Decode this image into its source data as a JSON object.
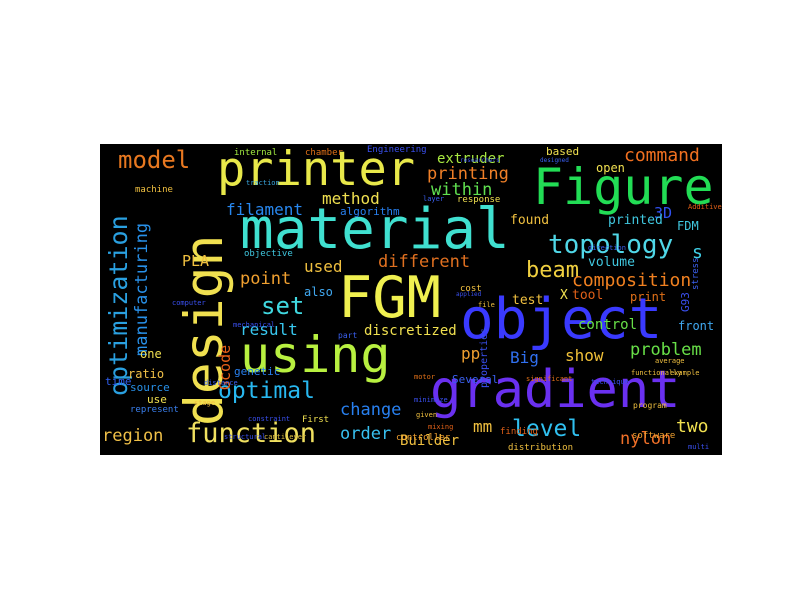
{
  "words": [
    {
      "text": "material",
      "color": "#40e0d0"
    },
    {
      "text": "Figure",
      "color": "#22dd55"
    },
    {
      "text": "printer",
      "color": "#e8e84a"
    },
    {
      "text": "design",
      "color": "#f0e050"
    },
    {
      "text": "FGM",
      "color": "#f0f050"
    },
    {
      "text": "object",
      "color": "#3a3aff"
    },
    {
      "text": "using",
      "color": "#b8f040"
    },
    {
      "text": "gradient",
      "color": "#6a30f0"
    },
    {
      "text": "optimization",
      "color": "#2aa0e0"
    },
    {
      "text": "topology",
      "color": "#50d8e8"
    },
    {
      "text": "model",
      "color": "#e87820"
    },
    {
      "text": "function",
      "color": "#f0e060"
    },
    {
      "text": "optimal",
      "color": "#28b8f0"
    },
    {
      "text": "beam",
      "color": "#f0d040"
    },
    {
      "text": "set",
      "color": "#40d8e0"
    },
    {
      "text": "level",
      "color": "#30c0f0"
    },
    {
      "text": "composition",
      "color": "#f08020"
    },
    {
      "text": "command",
      "color": "#f07020"
    },
    {
      "text": "printing",
      "color": "#f08028"
    },
    {
      "text": "within",
      "color": "#60e050"
    },
    {
      "text": "method",
      "color": "#f0e050"
    },
    {
      "text": "filament",
      "color": "#2888f0"
    },
    {
      "text": "point",
      "color": "#f0a030"
    },
    {
      "text": "different",
      "color": "#e07020"
    },
    {
      "text": "used",
      "color": "#f0c040"
    },
    {
      "text": "result",
      "color": "#38c8f0"
    },
    {
      "text": "change",
      "color": "#2880f0"
    },
    {
      "text": "order",
      "color": "#38c0f0"
    },
    {
      "text": "region",
      "color": "#f0c048"
    },
    {
      "text": "problem",
      "color": "#68e048"
    },
    {
      "text": "show",
      "color": "#f0c038"
    },
    {
      "text": "manufacturing",
      "color": "#2890e8"
    },
    {
      "text": "extruder",
      "color": "#a8e840"
    },
    {
      "text": "discretized",
      "color": "#f0e050"
    },
    {
      "text": "Big",
      "color": "#3070f0"
    },
    {
      "text": "nylon",
      "color": "#f07028"
    },
    {
      "text": "two",
      "color": "#f0e050"
    },
    {
      "text": "mm",
      "color": "#f0c040"
    },
    {
      "text": "pp",
      "color": "#f0a030"
    },
    {
      "text": "Gcode",
      "color": "#e86018"
    },
    {
      "text": "PLA",
      "color": "#f0c040"
    },
    {
      "text": "3D",
      "color": "#3050f0"
    },
    {
      "text": "FDM",
      "color": "#40c8e0"
    },
    {
      "text": "s",
      "color": "#40d0e8"
    },
    {
      "text": "printed",
      "color": "#40c8e0"
    },
    {
      "text": "found",
      "color": "#f0c040"
    },
    {
      "text": "test",
      "color": "#f0c040"
    },
    {
      "text": "tool",
      "color": "#e06018"
    },
    {
      "text": "X",
      "color": "#f0e050"
    },
    {
      "text": "print",
      "color": "#e07018"
    },
    {
      "text": "control",
      "color": "#68e048"
    },
    {
      "text": "volume",
      "color": "#40c8e0"
    },
    {
      "text": "front",
      "color": "#40a8f0"
    },
    {
      "text": "one",
      "color": "#f0e050"
    },
    {
      "text": "ratio",
      "color": "#f0c048"
    },
    {
      "text": "source",
      "color": "#2890e8"
    },
    {
      "text": "time",
      "color": "#3060f0"
    },
    {
      "text": "use",
      "color": "#f0e050"
    },
    {
      "text": "also",
      "color": "#40a8f0"
    },
    {
      "text": "genetic",
      "color": "#2880f0"
    },
    {
      "text": "Builder",
      "color": "#f0c040"
    },
    {
      "text": "open",
      "color": "#f0e050"
    },
    {
      "text": "based",
      "color": "#f0e050"
    },
    {
      "text": "algorithm",
      "color": "#2880f0"
    },
    {
      "text": "internal",
      "color": "#a0e840"
    },
    {
      "text": "chamber",
      "color": "#e07018"
    },
    {
      "text": "Engineering",
      "color": "#3a50f0"
    },
    {
      "text": "represent",
      "color": "#3a80f0"
    },
    {
      "text": "objective",
      "color": "#40c8e0"
    },
    {
      "text": "machine",
      "color": "#f0c040"
    },
    {
      "text": "properties",
      "color": "#3a50f0"
    },
    {
      "text": "Several",
      "color": "#3a60f0"
    },
    {
      "text": "controller",
      "color": "#f0a030"
    },
    {
      "text": "distribution",
      "color": "#f0c040"
    },
    {
      "text": "First",
      "color": "#f0e050"
    },
    {
      "text": "software",
      "color": "#f0a030"
    },
    {
      "text": "stress",
      "color": "#3a60f0"
    },
    {
      "text": "finding",
      "color": "#e06018"
    },
    {
      "text": "cost",
      "color": "#f0c040"
    },
    {
      "text": "response",
      "color": "#f0e050"
    },
    {
      "text": "mechanical",
      "color": "#3a50f0"
    },
    {
      "text": "part",
      "color": "#3a60f0"
    },
    {
      "text": "layer",
      "color": "#3a60f0"
    },
    {
      "text": "traction",
      "color": "#3aa8e0"
    },
    {
      "text": "program",
      "color": "#f0c040"
    },
    {
      "text": "stage",
      "color": "#f0c040"
    },
    {
      "text": "minimize",
      "color": "#3a50f0"
    },
    {
      "text": "motor",
      "color": "#e07018"
    },
    {
      "text": "given",
      "color": "#f0c040"
    },
    {
      "text": "mixing",
      "color": "#e06018"
    },
    {
      "text": "file",
      "color": "#f0c040"
    },
    {
      "text": "computer",
      "color": "#3a50f0"
    },
    {
      "text": "cantilever",
      "color": "#e0c040"
    },
    {
      "text": "structural",
      "color": "#3a50f0"
    },
    {
      "text": "direction",
      "color": "#3a60f0"
    },
    {
      "text": "technique",
      "color": "#3a50f0"
    },
    {
      "text": "distance",
      "color": "#3a60f0"
    },
    {
      "text": "constraint",
      "color": "#3a50f0"
    },
    {
      "text": "Additive",
      "color": "#e06018"
    },
    {
      "text": "functionally",
      "color": "#f0c040"
    },
    {
      "text": "researchers",
      "color": "#3a50f0"
    },
    {
      "text": "significant",
      "color": "#e07018"
    },
    {
      "text": "designed",
      "color": "#3a60f0"
    },
    {
      "text": "applied",
      "color": "#3a50f0"
    },
    {
      "text": "average",
      "color": "#f0c040"
    },
    {
      "text": "example",
      "color": "#f0c040"
    },
    {
      "text": "multi",
      "color": "#3a50f0"
    },
    {
      "text": "G93",
      "color": "#3a50f0"
    }
  ]
}
